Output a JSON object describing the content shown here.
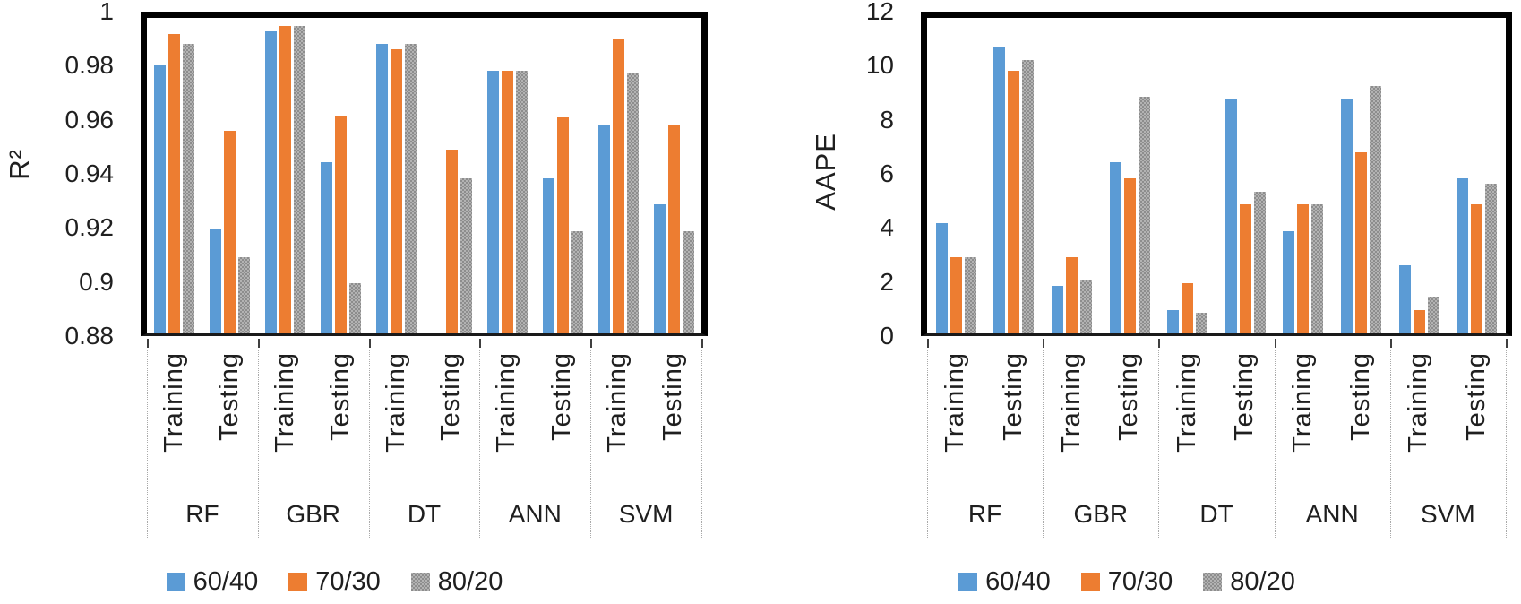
{
  "figure": {
    "background": "#ffffff",
    "text_color": "#1f1f1f"
  },
  "chart_data": [
    {
      "id": "r2",
      "type": "bar",
      "title": "",
      "xlabel": "",
      "ylabel": "R²",
      "ylim": [
        0.88,
        1.0
      ],
      "grid": false,
      "legend_position": "bottom",
      "yticks": [
        {
          "value": 1.0,
          "label": "1"
        },
        {
          "value": 0.98,
          "label": "0.98"
        },
        {
          "value": 0.96,
          "label": "0.96"
        },
        {
          "value": 0.94,
          "label": "0.94"
        },
        {
          "value": 0.92,
          "label": "0.92"
        },
        {
          "value": 0.9,
          "label": "0.9"
        },
        {
          "value": 0.88,
          "label": "0.88"
        }
      ],
      "groups": [
        "RF",
        "GBR",
        "DT",
        "ANN",
        "SVM"
      ],
      "subcategories": [
        "Training",
        "Testing"
      ],
      "categories": [
        "RF Training",
        "RF Testing",
        "GBR Training",
        "GBR Testing",
        "DT Training",
        "DT Testing",
        "ANN Training",
        "ANN Testing",
        "SVM Training",
        "SVM Testing"
      ],
      "series": [
        {
          "name": "60/40",
          "color": "#5B9BD5",
          "pattern": false,
          "values": [
            0.982,
            0.92,
            0.995,
            0.945,
            0.99,
            null,
            0.98,
            0.939,
            0.959,
            0.929
          ]
        },
        {
          "name": "70/30",
          "color": "#ED7D31",
          "pattern": false,
          "values": [
            0.994,
            0.957,
            0.997,
            0.963,
            0.988,
            0.95,
            0.98,
            0.962,
            0.992,
            0.959
          ]
        },
        {
          "name": "80/20",
          "color": "#A5A5A5",
          "pattern": true,
          "values": [
            0.99,
            0.909,
            0.997,
            0.899,
            0.99,
            0.939,
            0.98,
            0.919,
            0.979,
            0.919
          ]
        }
      ],
      "legend": [
        "60/40",
        "70/30",
        "80/20"
      ]
    },
    {
      "id": "aape",
      "type": "bar",
      "title": "",
      "xlabel": "",
      "ylabel": "AAPE",
      "ylim": [
        0,
        12
      ],
      "grid": false,
      "legend_position": "bottom",
      "yticks": [
        {
          "value": 12,
          "label": "12"
        },
        {
          "value": 10,
          "label": "10"
        },
        {
          "value": 8,
          "label": "8"
        },
        {
          "value": 6,
          "label": "6"
        },
        {
          "value": 4,
          "label": "4"
        },
        {
          "value": 2,
          "label": "2"
        },
        {
          "value": 0,
          "label": "0"
        }
      ],
      "groups": [
        "RF",
        "GBR",
        "DT",
        "ANN",
        "SVM"
      ],
      "subcategories": [
        "Training",
        "Testing"
      ],
      "categories": [
        "RF Training",
        "RF Testing",
        "GBR Training",
        "GBR Testing",
        "DT Training",
        "DT Testing",
        "ANN Training",
        "ANN Testing",
        "SVM Training",
        "SVM Testing"
      ],
      "series": [
        {
          "name": "60/40",
          "color": "#5B9BD5",
          "pattern": false,
          "values": [
            4.2,
            10.9,
            1.8,
            6.5,
            0.9,
            8.9,
            3.9,
            8.9,
            2.6,
            5.9
          ]
        },
        {
          "name": "70/30",
          "color": "#ED7D31",
          "pattern": false,
          "values": [
            2.9,
            10.0,
            2.9,
            5.9,
            1.9,
            4.9,
            4.9,
            6.9,
            0.9,
            4.9
          ]
        },
        {
          "name": "80/20",
          "color": "#A5A5A5",
          "pattern": true,
          "values": [
            2.9,
            10.4,
            2.0,
            9.0,
            0.8,
            5.4,
            4.9,
            9.4,
            1.4,
            5.7
          ]
        }
      ],
      "legend": [
        "60/40",
        "70/30",
        "80/20"
      ]
    }
  ]
}
